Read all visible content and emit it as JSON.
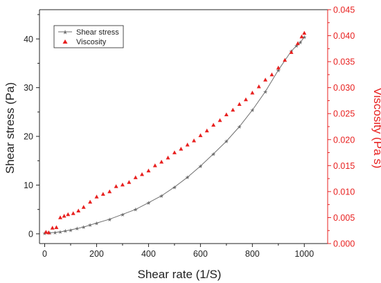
{
  "chart_data": {
    "type": "scatter",
    "xlabel": "Shear rate (1/S)",
    "ylabel": "Shear stress (Pa)",
    "y2label": "Viscosity (Pa s)",
    "xlim": [
      -20,
      1090
    ],
    "ylim": [
      -2,
      46
    ],
    "y2lim": [
      0,
      0.045
    ],
    "xticks": [
      0,
      200,
      400,
      600,
      800,
      1000
    ],
    "yticks": [
      0,
      10,
      20,
      30,
      40
    ],
    "y2ticks": [
      0.0,
      0.005,
      0.01,
      0.015,
      0.02,
      0.025,
      0.03,
      0.035,
      0.04,
      0.045
    ],
    "legend_position": "top-left",
    "grid": false,
    "colors": {
      "shear_stress": "#6e6e6e",
      "viscosity": "#e8201f",
      "axis": "#222222",
      "right_axis": "#e8201f"
    },
    "series": [
      {
        "name": "Shear stress",
        "axis": "left",
        "marker": "star",
        "line": true,
        "x": [
          0,
          20,
          40,
          60,
          80,
          100,
          125,
          150,
          175,
          200,
          250,
          300,
          350,
          400,
          450,
          500,
          550,
          600,
          650,
          700,
          750,
          800,
          850,
          900,
          950,
          970,
          985,
          1000
        ],
        "y": [
          0.1,
          0.2,
          0.3,
          0.4,
          0.6,
          0.8,
          1.1,
          1.4,
          1.8,
          2.2,
          3.0,
          4.0,
          5.0,
          6.4,
          7.8,
          9.6,
          11.6,
          13.9,
          16.4,
          19.0,
          22.0,
          25.4,
          29.2,
          33.6,
          37.5,
          38.6,
          39.3,
          40.4
        ]
      },
      {
        "name": "Viscosity",
        "axis": "right",
        "marker": "triangle",
        "line": false,
        "x": [
          5,
          15,
          30,
          45,
          60,
          75,
          90,
          110,
          130,
          150,
          175,
          200,
          225,
          250,
          275,
          300,
          325,
          350,
          375,
          400,
          425,
          450,
          475,
          500,
          525,
          550,
          575,
          600,
          625,
          650,
          675,
          700,
          725,
          750,
          775,
          800,
          825,
          850,
          875,
          900,
          925,
          950,
          975,
          990,
          1000
        ],
        "y": [
          0.0022,
          0.0021,
          0.003,
          0.0031,
          0.005,
          0.0053,
          0.0056,
          0.0058,
          0.0063,
          0.007,
          0.008,
          0.009,
          0.0095,
          0.01,
          0.011,
          0.0113,
          0.0118,
          0.0127,
          0.0133,
          0.014,
          0.015,
          0.0157,
          0.0165,
          0.0175,
          0.0182,
          0.019,
          0.0198,
          0.0208,
          0.0217,
          0.0228,
          0.0237,
          0.0248,
          0.0257,
          0.0268,
          0.0277,
          0.029,
          0.0302,
          0.0315,
          0.0325,
          0.0338,
          0.0353,
          0.0368,
          0.0385,
          0.0398,
          0.0405
        ]
      }
    ]
  }
}
